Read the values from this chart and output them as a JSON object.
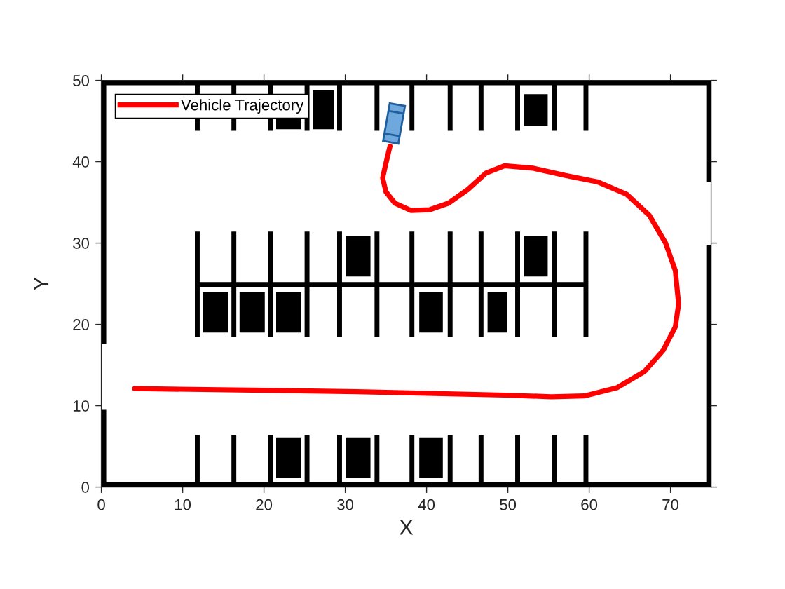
{
  "chart_data": {
    "type": "line",
    "xlabel": "X",
    "ylabel": "Y",
    "xlim": [
      0,
      75
    ],
    "ylim": [
      0,
      50
    ],
    "xticks": [
      0,
      10,
      20,
      30,
      40,
      50,
      60,
      70
    ],
    "yticks": [
      0,
      10,
      20,
      30,
      40,
      50
    ],
    "legend": "top left",
    "line_style": "solid",
    "series": [
      {
        "name": "Vehicle Trajectory",
        "color": "#ff0000",
        "x": [
          4.1,
          20,
          32.4,
          49.6,
          55.3,
          59.4,
          63.4,
          66.8,
          69.1,
          70.6,
          71.0,
          70.6,
          69.4,
          67.4,
          64.6,
          61.1,
          57.1,
          53.1,
          49.6,
          47.3,
          45.1,
          42.7,
          40.4,
          38.1,
          36.1,
          35.0,
          34.6,
          35.0,
          35.5
        ],
        "values": [
          12.1,
          11.9,
          11.7,
          11.3,
          11.1,
          11.2,
          12.2,
          14.2,
          16.8,
          19.7,
          22.5,
          26.6,
          30.0,
          33.4,
          36.0,
          37.5,
          38.3,
          39.2,
          39.5,
          38.6,
          36.6,
          34.9,
          34.1,
          34.0,
          34.9,
          36.3,
          38.0,
          39.8,
          41.9
        ]
      }
    ]
  }
}
